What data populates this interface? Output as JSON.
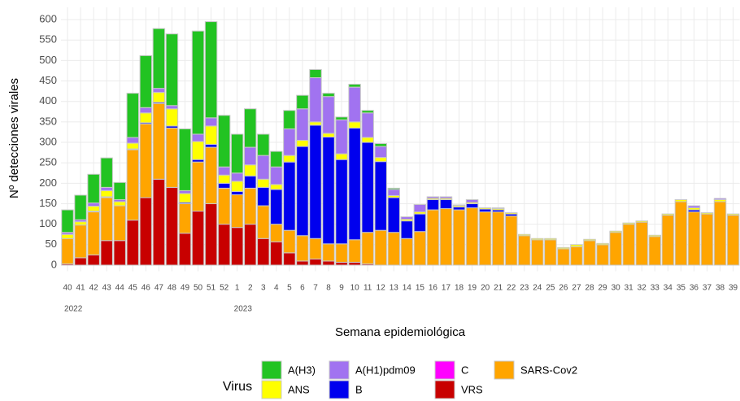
{
  "chart_data": {
    "type": "stacked_bar",
    "ylabel": "Nº detecciones virales",
    "xlabel": "Semana epidemiológica",
    "legend_title": "Virus",
    "categories": [
      "40",
      "41",
      "42",
      "43",
      "44",
      "45",
      "46",
      "47",
      "48",
      "49",
      "50",
      "51",
      "52",
      "1",
      "2",
      "3",
      "4",
      "5",
      "6",
      "7",
      "8",
      "9",
      "10",
      "11",
      "12",
      "13",
      "14",
      "15",
      "16",
      "17",
      "18",
      "19",
      "20",
      "21",
      "22",
      "23",
      "24",
      "25",
      "26",
      "27",
      "28",
      "29",
      "30",
      "31",
      "32",
      "33",
      "34",
      "35",
      "36",
      "37",
      "38",
      "39"
    ],
    "x_secondary": [
      "2022",
      null,
      null,
      null,
      null,
      null,
      null,
      null,
      null,
      null,
      null,
      null,
      null,
      "2023",
      null,
      null,
      null,
      null,
      null,
      null,
      null,
      null,
      null,
      null,
      null,
      null,
      null,
      null,
      null,
      null,
      null,
      null,
      null,
      null,
      null,
      null,
      null,
      null,
      null,
      null,
      null,
      null,
      null,
      null,
      null,
      null,
      null,
      null,
      null,
      null,
      null,
      null
    ],
    "series": [
      {
        "name": "VRS",
        "color": "#c80000",
        "values": [
          3,
          18,
          25,
          60,
          60,
          110,
          165,
          210,
          190,
          78,
          132,
          150,
          100,
          92,
          100,
          65,
          57,
          30,
          10,
          15,
          10,
          7,
          7,
          3,
          0,
          0,
          0,
          0,
          0,
          0,
          0,
          0,
          0,
          0,
          0,
          0,
          0,
          0,
          0,
          0,
          0,
          0,
          0,
          0,
          0,
          0,
          0,
          0,
          0,
          0,
          0,
          0
        ]
      },
      {
        "name": "SARS-Cov2",
        "color": "#ffa500",
        "values": [
          62,
          80,
          105,
          105,
          85,
          172,
          180,
          185,
          145,
          72,
          120,
          138,
          88,
          80,
          88,
          80,
          43,
          55,
          62,
          50,
          42,
          45,
          55,
          77,
          85,
          80,
          65,
          82,
          135,
          138,
          135,
          140,
          130,
          130,
          120,
          72,
          62,
          62,
          40,
          45,
          60,
          50,
          80,
          100,
          105,
          70,
          122,
          155,
          130,
          125,
          155,
          122
        ]
      },
      {
        "name": "B",
        "color": "#0000ee",
        "values": [
          0,
          0,
          2,
          2,
          0,
          2,
          3,
          3,
          5,
          3,
          6,
          7,
          12,
          8,
          30,
          45,
          85,
          167,
          218,
          277,
          261,
          206,
          273,
          220,
          168,
          85,
          43,
          43,
          25,
          22,
          7,
          10,
          7,
          5,
          5,
          0,
          0,
          0,
          0,
          0,
          0,
          0,
          0,
          0,
          0,
          0,
          0,
          0,
          5,
          0,
          0,
          0
        ]
      },
      {
        "name": "ANS",
        "color": "#ffff00",
        "values": [
          10,
          8,
          12,
          15,
          10,
          14,
          24,
          24,
          42,
          22,
          44,
          45,
          20,
          25,
          27,
          20,
          12,
          16,
          15,
          8,
          9,
          14,
          15,
          12,
          10,
          5,
          4,
          5,
          3,
          3,
          3,
          3,
          3,
          3,
          3,
          3,
          3,
          3,
          3,
          5,
          3,
          3,
          3,
          3,
          3,
          3,
          3,
          5,
          5,
          3,
          5,
          3
        ]
      },
      {
        "name": "C",
        "color": "#ff00ff",
        "values": [
          0,
          0,
          0,
          0,
          0,
          0,
          0,
          0,
          0,
          0,
          0,
          0,
          0,
          0,
          0,
          0,
          0,
          0,
          0,
          0,
          0,
          0,
          0,
          0,
          0,
          0,
          0,
          0,
          0,
          0,
          0,
          0,
          0,
          0,
          0,
          0,
          0,
          0,
          0,
          0,
          0,
          0,
          0,
          0,
          0,
          0,
          0,
          0,
          0,
          0,
          0,
          0
        ]
      },
      {
        "name": "A(H1)pdm09",
        "color": "#a173f0",
        "values": [
          5,
          5,
          8,
          8,
          5,
          14,
          13,
          10,
          8,
          7,
          18,
          20,
          20,
          20,
          43,
          58,
          43,
          65,
          77,
          108,
          90,
          83,
          85,
          60,
          27,
          15,
          6,
          18,
          4,
          4,
          2,
          7,
          0,
          2,
          0,
          0,
          0,
          0,
          0,
          0,
          0,
          0,
          0,
          0,
          0,
          0,
          0,
          0,
          5,
          0,
          3,
          0
        ]
      },
      {
        "name": "A(H3)",
        "color": "#22c322",
        "values": [
          55,
          60,
          70,
          72,
          42,
          108,
          127,
          146,
          175,
          151,
          252,
          235,
          126,
          95,
          94,
          52,
          38,
          45,
          33,
          20,
          8,
          7,
          7,
          6,
          7,
          3,
          0,
          0,
          0,
          0,
          0,
          0,
          0,
          0,
          0,
          0,
          0,
          0,
          0,
          0,
          0,
          0,
          0,
          0,
          0,
          0,
          0,
          0,
          0,
          0,
          0,
          0
        ]
      }
    ],
    "ylim": [
      -15,
      630
    ],
    "yticks": [
      0,
      50,
      100,
      150,
      200,
      250,
      300,
      350,
      400,
      450,
      500,
      550,
      600
    ],
    "grid": true
  }
}
